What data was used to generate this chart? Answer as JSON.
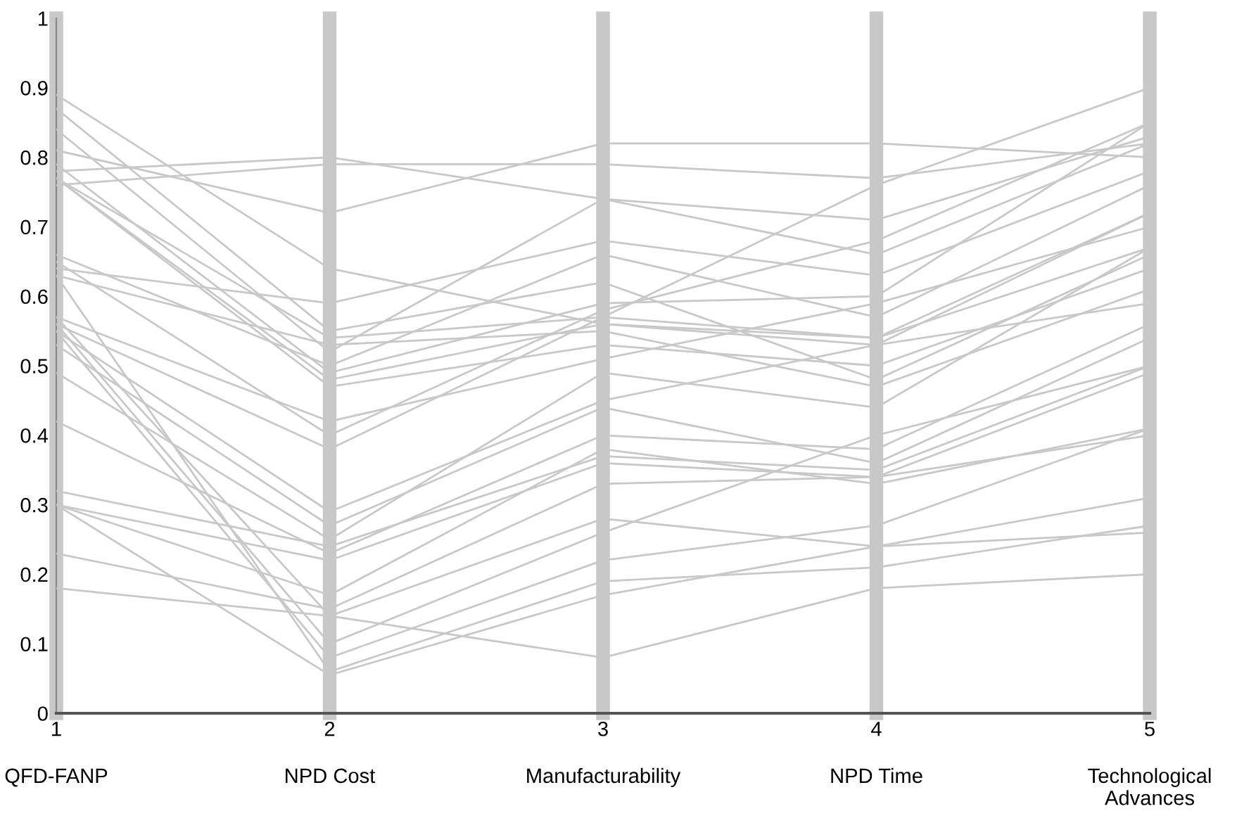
{
  "chart_data": {
    "type": "line",
    "x": [
      1,
      2,
      3,
      4,
      5
    ],
    "xlim": [
      1,
      5
    ],
    "xticks": [
      1,
      2,
      3,
      4,
      5
    ],
    "annotations": [
      "QFD-FANP",
      "NPD Cost",
      "Manufacturability",
      "NPD Time",
      "Technological\nAdvances"
    ],
    "ylim": [
      0,
      1
    ],
    "yticks": [
      0,
      0.1,
      0.2,
      0.3,
      0.4,
      0.5,
      0.6,
      0.7,
      0.8,
      0.9,
      1
    ],
    "grid": "x",
    "marker": "none",
    "line_style": "solid",
    "series": [
      {
        "color": "#c8c8c8",
        "values": [
          0.89,
          0.64,
          0.56,
          0.54,
          0.72
        ]
      },
      {
        "color": "#c8c8c8",
        "values": [
          0.87,
          0.55,
          0.62,
          0.48,
          0.66
        ]
      },
      {
        "color": "#c8c8c8",
        "values": [
          0.84,
          0.52,
          0.74,
          0.66,
          0.82
        ]
      },
      {
        "color": "#c8c8c8",
        "values": [
          0.81,
          0.72,
          0.82,
          0.82,
          0.8
        ]
      },
      {
        "color": "#c8c8c8",
        "values": [
          0.79,
          0.49,
          0.59,
          0.6,
          0.85
        ]
      },
      {
        "color": "#c8c8c8",
        "values": [
          0.78,
          0.8,
          0.74,
          0.71,
          0.83
        ]
      },
      {
        "color": "#c8c8c8",
        "values": [
          0.77,
          0.54,
          0.57,
          0.76,
          0.9
        ]
      },
      {
        "color": "#c8c8c8",
        "values": [
          0.77,
          0.48,
          0.56,
          0.53,
          0.72
        ]
      },
      {
        "color": "#c8c8c8",
        "values": [
          0.76,
          0.79,
          0.79,
          0.77,
          0.82
        ]
      },
      {
        "color": "#c8c8c8",
        "values": [
          0.77,
          0.47,
          0.53,
          0.5,
          0.64
        ]
      },
      {
        "color": "#c8c8c8",
        "values": [
          0.66,
          0.5,
          0.66,
          0.57,
          0.76
        ]
      },
      {
        "color": "#c8c8c8",
        "values": [
          0.65,
          0.4,
          0.58,
          0.68,
          0.85
        ]
      },
      {
        "color": "#c8c8c8",
        "values": [
          0.64,
          0.59,
          0.68,
          0.63,
          0.78
        ]
      },
      {
        "color": "#c8c8c8",
        "values": [
          0.63,
          0.53,
          0.55,
          0.47,
          0.61
        ]
      },
      {
        "color": "#c8c8c8",
        "values": [
          0.57,
          0.42,
          0.51,
          0.59,
          0.7
        ]
      },
      {
        "color": "#c8c8c8",
        "values": [
          0.56,
          0.38,
          0.57,
          0.54,
          0.67
        ]
      },
      {
        "color": "#c8c8c8",
        "values": [
          0.55,
          0.29,
          0.45,
          0.53,
          0.59
        ]
      },
      {
        "color": "#c8c8c8",
        "values": [
          0.53,
          0.27,
          0.44,
          0.36,
          0.54
        ]
      },
      {
        "color": "#c8c8c8",
        "values": [
          0.49,
          0.25,
          0.49,
          0.44,
          0.67
        ]
      },
      {
        "color": "#c8c8c8",
        "values": [
          0.42,
          0.23,
          0.4,
          0.38,
          0.56
        ]
      },
      {
        "color": "#c8c8c8",
        "values": [
          0.32,
          0.24,
          0.37,
          0.35,
          0.5
        ]
      },
      {
        "color": "#c8c8c8",
        "values": [
          0.3,
          0.22,
          0.36,
          0.34,
          0.49
        ]
      },
      {
        "color": "#c8c8c8",
        "values": [
          0.3,
          0.17,
          0.38,
          0.33,
          0.41
        ]
      },
      {
        "color": "#c8c8c8",
        "values": [
          0.23,
          0.15,
          0.33,
          0.34,
          0.4
        ]
      },
      {
        "color": "#c8c8c8",
        "values": [
          0.18,
          0.14,
          0.28,
          0.24,
          0.31
        ]
      },
      {
        "color": "#c8c8c8",
        "values": [
          0.56,
          0.1,
          0.26,
          0.4,
          0.5
        ]
      },
      {
        "color": "#c8c8c8",
        "values": [
          0.55,
          0.08,
          0.22,
          0.27,
          0.41
        ]
      },
      {
        "color": "#c8c8c8",
        "values": [
          0.63,
          0.06,
          0.19,
          0.21,
          0.27
        ]
      },
      {
        "color": "#c8c8c8",
        "values": [
          0.3,
          0.055,
          0.17,
          0.24,
          0.26
        ]
      },
      {
        "color": "#c8c8c8",
        "values": [
          0.57,
          0.14,
          0.08,
          0.18,
          0.2
        ]
      }
    ]
  }
}
